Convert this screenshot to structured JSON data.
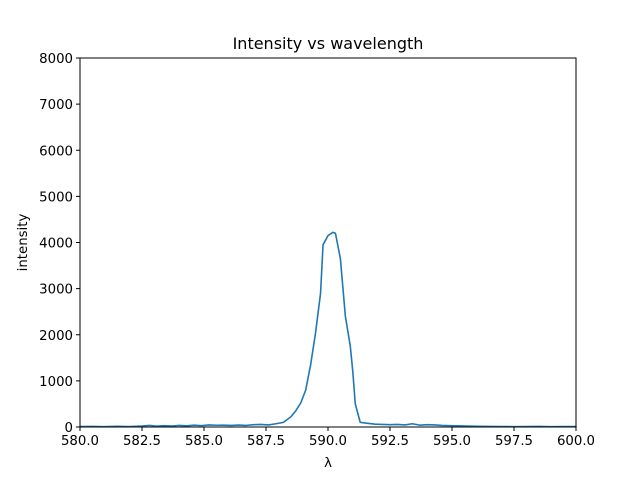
{
  "chart_data": {
    "type": "line",
    "title": "Intensity vs wavelength",
    "xlabel": "λ",
    "ylabel": "intensity",
    "xlim": [
      580.0,
      600.0
    ],
    "ylim": [
      0,
      8000
    ],
    "xticks": [
      "580.0",
      "582.5",
      "585.0",
      "587.5",
      "590.0",
      "592.5",
      "595.0",
      "597.5",
      "600.0"
    ],
    "yticks": [
      "0",
      "1000",
      "2000",
      "3000",
      "4000",
      "5000",
      "6000",
      "7000",
      "8000"
    ],
    "grid": false,
    "series": [
      {
        "color": "#1f77b4",
        "x": [
          580.0,
          580.5,
          581.0,
          581.5,
          582.0,
          582.5,
          582.8,
          583.1,
          583.4,
          583.7,
          584.0,
          584.3,
          584.6,
          584.9,
          585.2,
          585.5,
          585.8,
          586.1,
          586.4,
          586.7,
          587.0,
          587.3,
          587.6,
          587.9,
          588.2,
          588.5,
          588.7,
          588.9,
          589.1,
          589.3,
          589.5,
          589.7,
          589.8,
          590.0,
          590.2,
          590.3,
          590.5,
          590.7,
          590.9,
          591.0,
          591.1,
          591.3,
          591.6,
          591.9,
          592.2,
          592.5,
          592.8,
          593.1,
          593.4,
          593.7,
          594.0,
          594.3,
          594.6,
          594.9,
          595.2,
          595.6,
          596.0,
          596.5,
          597.0,
          597.5,
          598.0,
          598.5,
          599.0,
          599.5,
          600.0
        ],
        "y": [
          10,
          12,
          8,
          15,
          10,
          20,
          35,
          18,
          30,
          22,
          35,
          25,
          40,
          30,
          45,
          38,
          40,
          35,
          42,
          35,
          50,
          55,
          45,
          70,
          100,
          220,
          350,
          520,
          800,
          1350,
          2050,
          2900,
          3950,
          4150,
          4220,
          4200,
          3650,
          2400,
          1750,
          1200,
          500,
          100,
          80,
          60,
          55,
          50,
          55,
          45,
          70,
          40,
          50,
          45,
          35,
          30,
          25,
          20,
          15,
          12,
          10,
          8,
          10,
          12,
          8,
          10,
          10
        ]
      }
    ]
  }
}
